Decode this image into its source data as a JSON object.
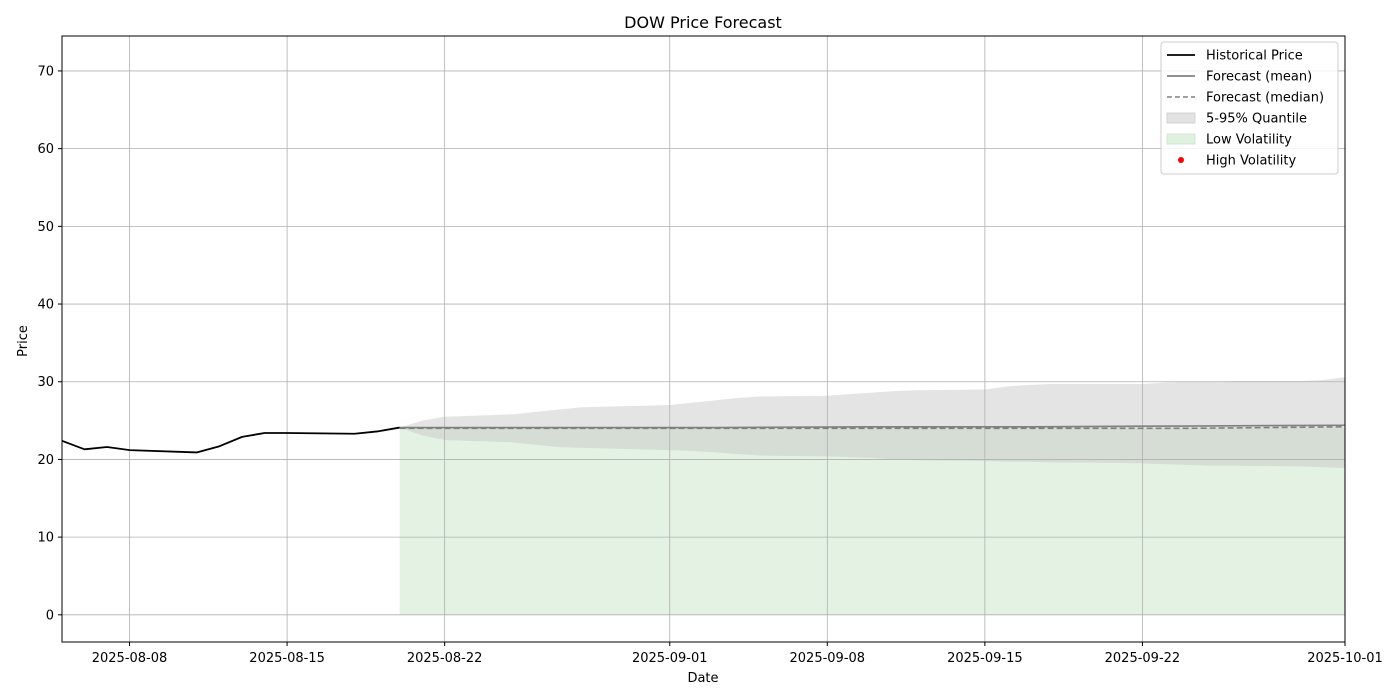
{
  "chart_data": {
    "type": "line",
    "title": "DOW Price Forecast",
    "xlabel": "Date",
    "ylabel": "Price",
    "xlim": [
      "2025-08-05",
      "2025-10-01"
    ],
    "ylim": [
      -3.5,
      74.5
    ],
    "x_ticks": [
      "2025-08-08",
      "2025-08-15",
      "2025-08-22",
      "2025-09-01",
      "2025-09-08",
      "2025-09-15",
      "2025-09-22",
      "2025-10-01"
    ],
    "y_ticks": [
      0,
      10,
      20,
      30,
      40,
      50,
      60,
      70
    ],
    "grid": true,
    "legend_position": "top-right",
    "legend": [
      {
        "label": "Historical Price",
        "kind": "line",
        "color": "#000000"
      },
      {
        "label": "Forecast (mean)",
        "kind": "line",
        "color": "#808080"
      },
      {
        "label": "Forecast (median)",
        "kind": "dashed",
        "color": "#808080"
      },
      {
        "label": "5-95% Quantile",
        "kind": "patch",
        "color": "#cccccc"
      },
      {
        "label": "Low Volatility",
        "kind": "patch",
        "color": "#c8e6c8"
      },
      {
        "label": "High Volatility",
        "kind": "dot",
        "color": "#ff0000"
      }
    ],
    "series": [
      {
        "name": "Historical Price",
        "style": "solid",
        "color": "#000000",
        "points": [
          [
            "2025-08-05",
            22.4
          ],
          [
            "2025-08-06",
            21.3
          ],
          [
            "2025-08-07",
            21.6
          ],
          [
            "2025-08-08",
            21.2
          ],
          [
            "2025-08-11",
            20.9
          ],
          [
            "2025-08-12",
            21.7
          ],
          [
            "2025-08-13",
            22.9
          ],
          [
            "2025-08-14",
            23.4
          ],
          [
            "2025-08-15",
            23.4
          ],
          [
            "2025-08-18",
            23.3
          ],
          [
            "2025-08-19",
            23.6
          ],
          [
            "2025-08-20",
            24.1
          ]
        ]
      },
      {
        "name": "Forecast (mean)",
        "style": "solid",
        "color": "#808080",
        "points": [
          [
            "2025-08-20",
            24.1
          ],
          [
            "2025-08-27",
            24.1
          ],
          [
            "2025-09-03",
            24.1
          ],
          [
            "2025-09-10",
            24.2
          ],
          [
            "2025-09-17",
            24.2
          ],
          [
            "2025-09-24",
            24.3
          ],
          [
            "2025-10-01",
            24.4
          ]
        ]
      },
      {
        "name": "Forecast (median)",
        "style": "dashed",
        "color": "#808080",
        "points": [
          [
            "2025-08-20",
            24.0
          ],
          [
            "2025-08-27",
            24.0
          ],
          [
            "2025-09-03",
            24.0
          ],
          [
            "2025-09-10",
            24.0
          ],
          [
            "2025-09-17",
            24.0
          ],
          [
            "2025-09-24",
            24.0
          ],
          [
            "2025-10-01",
            24.2
          ]
        ]
      }
    ],
    "bands": [
      {
        "name": "Low Volatility",
        "color": "#c8e6c8",
        "opacity": 0.5,
        "x": [
          "2025-08-20",
          "2025-10-01"
        ],
        "lower": [
          0,
          0
        ],
        "upper": [
          24.1,
          24.1
        ]
      },
      {
        "name": "5-95% Quantile",
        "color": "#c4c4c4",
        "opacity": 0.45,
        "x": [
          "2025-08-20",
          "2025-08-21",
          "2025-08-22",
          "2025-08-25",
          "2025-08-26",
          "2025-08-27",
          "2025-08-28",
          "2025-09-01",
          "2025-09-02",
          "2025-09-03",
          "2025-09-04",
          "2025-09-05",
          "2025-09-08",
          "2025-09-09",
          "2025-09-10",
          "2025-09-11",
          "2025-09-12",
          "2025-09-15",
          "2025-09-16",
          "2025-09-17",
          "2025-09-18",
          "2025-09-19",
          "2025-09-22",
          "2025-09-23",
          "2025-09-24",
          "2025-09-25",
          "2025-09-26",
          "2025-09-29",
          "2025-09-30",
          "2025-10-01"
        ],
        "lower": [
          24.1,
          23.1,
          22.5,
          22.2,
          21.9,
          21.6,
          21.5,
          21.2,
          21.1,
          20.9,
          20.7,
          20.5,
          20.4,
          20.3,
          20.2,
          20.0,
          19.9,
          19.8,
          19.7,
          19.7,
          19.6,
          19.6,
          19.5,
          19.4,
          19.3,
          19.2,
          19.2,
          19.1,
          19.0,
          18.9
        ],
        "upper": [
          24.1,
          25.0,
          25.5,
          25.8,
          26.1,
          26.4,
          26.7,
          27.0,
          27.3,
          27.6,
          27.9,
          28.1,
          28.2,
          28.4,
          28.6,
          28.8,
          28.9,
          29.0,
          29.4,
          29.6,
          29.7,
          29.7,
          29.7,
          29.9,
          30.0,
          30.0,
          30.1,
          30.1,
          30.2,
          30.6
        ]
      }
    ]
  }
}
